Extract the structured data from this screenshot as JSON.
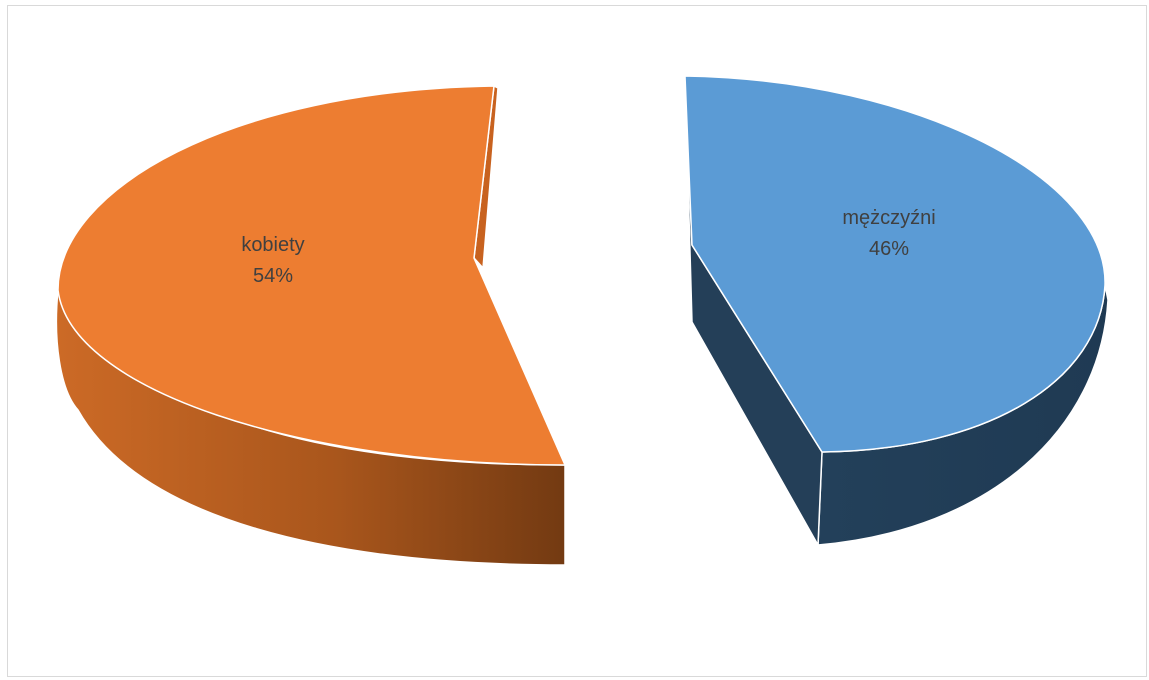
{
  "chart_data": {
    "type": "pie",
    "style": "3d-exploded",
    "slices": [
      {
        "category": "kobiety",
        "value": 54,
        "label": "54%",
        "color": "#ED7D31"
      },
      {
        "category": "mężczyźni",
        "value": 46,
        "label": "46%",
        "color": "#5B9BD5"
      }
    ],
    "legend": "none",
    "title": ""
  }
}
